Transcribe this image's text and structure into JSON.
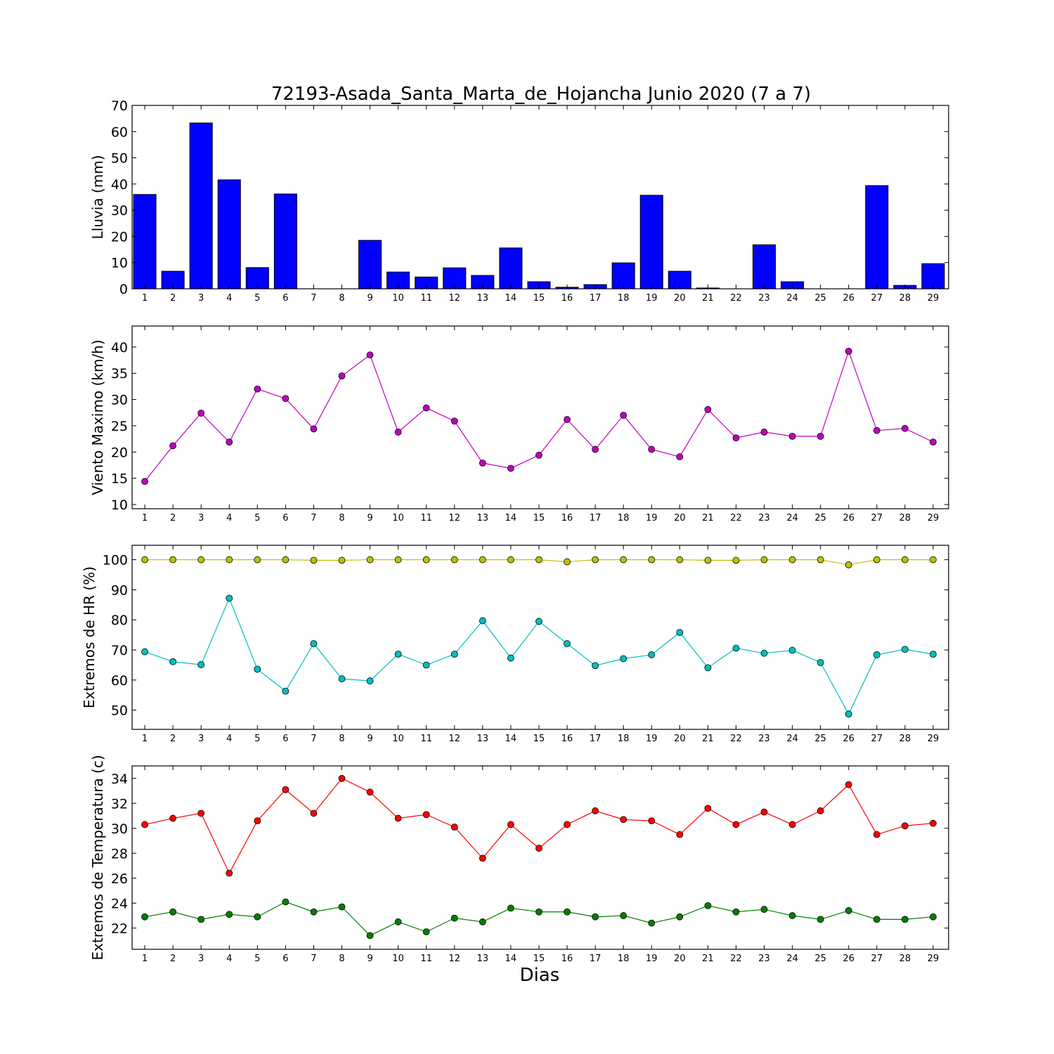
{
  "figure": {
    "title": "72193-Asada_Santa_Marta_de_Hojancha Junio 2020  (7 a 7)",
    "xlabel": "Dias"
  },
  "chart_data": [
    {
      "type": "bar",
      "ylabel": "Lluvia (mm)",
      "ylim": [
        0,
        70
      ],
      "yticks": [
        0,
        10,
        20,
        30,
        40,
        50,
        60,
        70
      ],
      "x": [
        1,
        2,
        3,
        4,
        5,
        6,
        7,
        8,
        9,
        10,
        11,
        12,
        13,
        14,
        15,
        16,
        17,
        18,
        19,
        20,
        21,
        22,
        23,
        24,
        25,
        26,
        27,
        28,
        29
      ],
      "series": [
        {
          "color": "#0000ff",
          "values": [
            36.0,
            6.7,
            63.3,
            41.6,
            8.1,
            36.2,
            0.0,
            0.0,
            18.5,
            6.4,
            4.5,
            8.0,
            5.1,
            15.6,
            2.7,
            0.6,
            1.6,
            9.9,
            35.7,
            6.7,
            0.3,
            0.0,
            16.8,
            2.7,
            0.0,
            0.0,
            39.4,
            1.3,
            9.6
          ]
        }
      ],
      "grid": false
    },
    {
      "type": "line",
      "ylabel": "Viento Maximo (km/h)",
      "ylim": [
        9.2,
        44.0
      ],
      "yticks": [
        10,
        15,
        20,
        25,
        30,
        35,
        40
      ],
      "x": [
        1,
        2,
        3,
        4,
        5,
        6,
        7,
        8,
        9,
        10,
        11,
        12,
        13,
        14,
        15,
        16,
        17,
        18,
        19,
        20,
        21,
        22,
        23,
        24,
        25,
        26,
        27,
        28,
        29
      ],
      "series": [
        {
          "color": "#bf00bf",
          "values": [
            14.4,
            21.2,
            27.4,
            21.9,
            32.0,
            30.2,
            24.4,
            34.5,
            38.5,
            23.8,
            28.4,
            25.9,
            17.9,
            16.9,
            19.4,
            26.2,
            20.5,
            27.0,
            20.5,
            19.1,
            28.1,
            22.7,
            23.8,
            23.0,
            23.0,
            39.2,
            24.1,
            24.5,
            21.9
          ]
        }
      ],
      "grid": false
    },
    {
      "type": "line",
      "ylabel": "Extremos de HR (%)",
      "ylim": [
        43.6,
        104.8
      ],
      "yticks": [
        50,
        60,
        70,
        80,
        90,
        100
      ],
      "x": [
        1,
        2,
        3,
        4,
        5,
        6,
        7,
        8,
        9,
        10,
        11,
        12,
        13,
        14,
        15,
        16,
        17,
        18,
        19,
        20,
        21,
        22,
        23,
        24,
        25,
        26,
        27,
        28,
        29
      ],
      "series": [
        {
          "color": "#bfbf00",
          "values": [
            100,
            100,
            100,
            100,
            100,
            100,
            99.8,
            99.8,
            100,
            100,
            100,
            100,
            100,
            100,
            100,
            99.3,
            100,
            100,
            100,
            100,
            99.8,
            99.8,
            100,
            100,
            100,
            98.3,
            100,
            100,
            100
          ]
        },
        {
          "color": "#00bfbf",
          "values": [
            69.4,
            66.1,
            65.1,
            87.2,
            63.6,
            56.3,
            72.1,
            60.4,
            59.7,
            68.6,
            65.0,
            68.6,
            79.7,
            67.3,
            79.5,
            72.1,
            64.8,
            67.1,
            68.4,
            75.8,
            64.1,
            70.6,
            68.9,
            69.9,
            65.8,
            48.7,
            68.4,
            70.2,
            68.6
          ]
        }
      ],
      "grid": false
    },
    {
      "type": "line",
      "ylabel": "Extremos de Temperatura (c)",
      "ylim": [
        20.3,
        35.0
      ],
      "yticks": [
        22,
        24,
        26,
        28,
        30,
        32,
        34
      ],
      "x": [
        1,
        2,
        3,
        4,
        5,
        6,
        7,
        8,
        9,
        10,
        11,
        12,
        13,
        14,
        15,
        16,
        17,
        18,
        19,
        20,
        21,
        22,
        23,
        24,
        25,
        26,
        27,
        28,
        29
      ],
      "series": [
        {
          "color": "#ff0000",
          "values": [
            30.3,
            30.8,
            31.2,
            26.4,
            30.6,
            33.1,
            31.2,
            34.0,
            32.9,
            30.8,
            31.1,
            30.1,
            27.6,
            30.3,
            28.4,
            30.3,
            31.4,
            30.7,
            30.6,
            29.5,
            31.6,
            30.3,
            31.3,
            30.3,
            31.4,
            33.5,
            29.5,
            30.2,
            30.4
          ]
        },
        {
          "color": "#008000",
          "values": [
            22.9,
            23.3,
            22.7,
            23.1,
            22.9,
            24.1,
            23.3,
            23.7,
            21.4,
            22.5,
            21.7,
            22.8,
            22.5,
            23.6,
            23.3,
            23.3,
            22.9,
            23.0,
            22.4,
            22.9,
            23.8,
            23.3,
            23.5,
            23.0,
            22.7,
            23.4,
            22.7,
            22.7,
            22.9
          ]
        }
      ],
      "grid": false
    }
  ]
}
